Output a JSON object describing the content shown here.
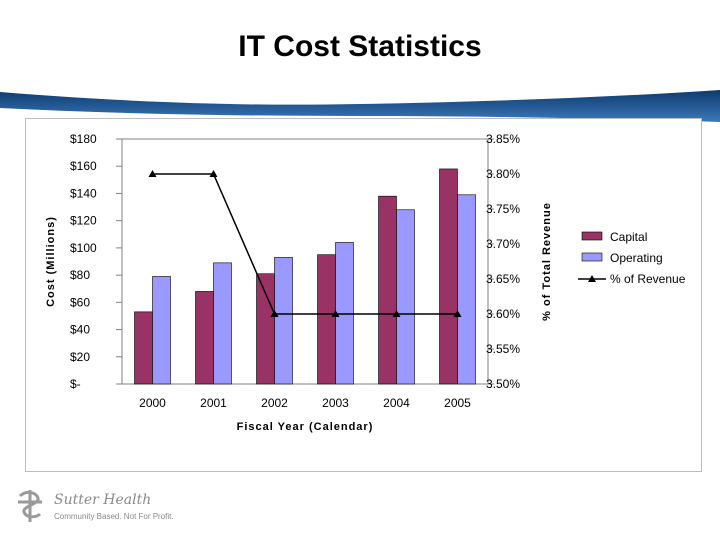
{
  "slide": {
    "title": "IT Cost Statistics"
  },
  "logo": {
    "name": "Sutter Health",
    "tagline": "Community Based. Not For Profit."
  },
  "colors": {
    "capital": "#993366",
    "operating": "#9999ff",
    "line": "#000000",
    "band": "#1b4f8a"
  },
  "chart_data": {
    "type": "bar",
    "title": "",
    "categories": [
      "2000",
      "2001",
      "2002",
      "2003",
      "2004",
      "2005"
    ],
    "xlabel": "Fiscal Year (Calendar)",
    "ylabel": "Cost (Millions)",
    "y2label": "% of Total Revenue",
    "ylim": [
      0,
      180
    ],
    "y2lim": [
      3.5,
      3.85
    ],
    "y_ticks": [
      "$-",
      "$20",
      "$40",
      "$60",
      "$80",
      "$100",
      "$120",
      "$140",
      "$160",
      "$180"
    ],
    "y2_ticks": [
      "3.50%",
      "3.55%",
      "3.60%",
      "3.65%",
      "3.70%",
      "3.75%",
      "3.80%",
      "3.85%"
    ],
    "series": [
      {
        "name": "Capital",
        "kind": "bar",
        "axis": "left",
        "values": [
          53,
          68,
          81,
          95,
          138,
          158
        ]
      },
      {
        "name": "Operating",
        "kind": "bar",
        "axis": "left",
        "values": [
          79,
          89,
          93,
          104,
          128,
          139
        ]
      },
      {
        "name": "% of Revenue",
        "kind": "line",
        "axis": "right",
        "values": [
          3.8,
          3.8,
          3.6,
          3.6,
          3.6,
          3.6
        ]
      }
    ],
    "legend": "right"
  }
}
